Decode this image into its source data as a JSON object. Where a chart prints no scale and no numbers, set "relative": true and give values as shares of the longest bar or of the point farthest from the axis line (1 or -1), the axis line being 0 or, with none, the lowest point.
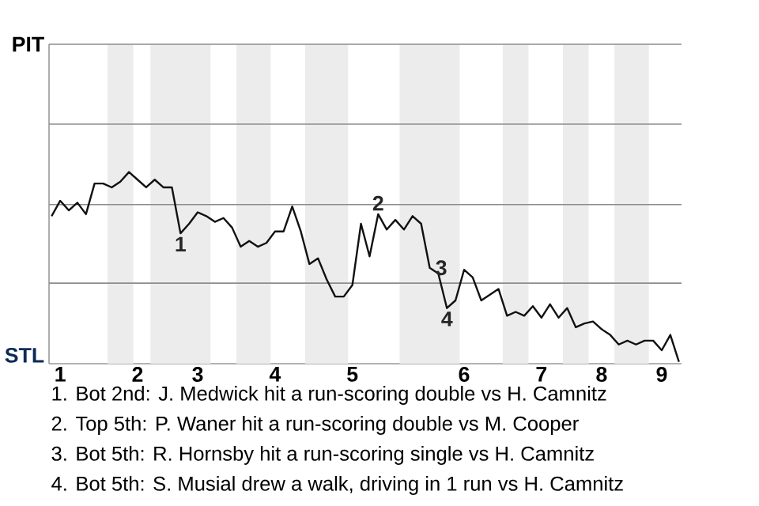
{
  "chart_data": {
    "type": "line",
    "relative": true,
    "categories": [
      null,
      "1",
      null,
      null,
      null,
      null,
      null,
      null,
      null,
      null,
      "2",
      null,
      null,
      null,
      null,
      null,
      null,
      "3",
      null,
      null,
      null,
      null,
      null,
      null,
      null,
      null,
      "4",
      null,
      null,
      null,
      null,
      null,
      null,
      null,
      null,
      "5",
      null,
      null,
      null,
      null,
      null,
      null,
      null,
      null,
      null,
      null,
      null,
      null,
      "6",
      null,
      null,
      null,
      null,
      null,
      null,
      null,
      null,
      "7",
      null,
      null,
      null,
      null,
      null,
      null,
      "8",
      null,
      null,
      null,
      null,
      null,
      null,
      "9",
      null,
      null
    ],
    "series": [
      {
        "color": "#111111",
        "values": [
          0.77,
          0.85,
          0.8,
          0.84,
          0.78,
          0.94,
          0.94,
          0.92,
          0.95,
          1,
          0.96,
          0.92,
          0.96,
          0.92,
          0.92,
          0.68,
          0.73,
          0.79,
          0.77,
          0.74,
          0.76,
          0.71,
          0.61,
          0.64,
          0.61,
          0.63,
          0.69,
          0.69,
          0.82,
          0.69,
          0.52,
          0.55,
          0.44,
          0.35,
          0.35,
          0.41,
          0.73,
          0.56,
          0.78,
          0.7,
          0.75,
          0.7,
          0.77,
          0.73,
          0.5,
          0.47,
          0.29,
          0.33,
          0.49,
          0.45,
          0.33,
          0.36,
          0.39,
          0.25,
          0.27,
          0.25,
          0.3,
          0.24,
          0.31,
          0.24,
          0.29,
          0.19,
          0.21,
          0.22,
          0.18,
          0.15,
          0.1,
          0.12,
          0.1,
          0.12,
          0.12,
          0.07,
          0.15,
          0.01
        ]
      }
    ],
    "ref_lines": [
      {
        "axis": "y",
        "value": 0.42,
        "color": "#8c8c8c"
      },
      {
        "axis": "y",
        "value": 0.83,
        "color": "#8c8c8c"
      },
      {
        "axis": "y",
        "value": 1.25,
        "color": "#8c8c8c"
      }
    ],
    "annotations": [
      {
        "text": "1",
        "y": 0.68
      },
      {
        "text": "2",
        "y": 0.78
      },
      {
        "text": "3",
        "y": 0.5
      },
      {
        "text": "4",
        "y": 0.29
      },
      "PIT",
      "STL",
      "1. Bot 2nd: J. Medwick hit a run-scoring double vs H. Camnitz",
      "2. Top 5th: P. Waner hit a run-scoring double vs M. Cooper",
      "3. Bot 5th: R. Hornsby hit a run-scoring single vs H. Camnitz",
      "4. Bot 5th: S. Musial drew a walk, driving in 1 run vs H. Camnitz"
    ]
  }
}
